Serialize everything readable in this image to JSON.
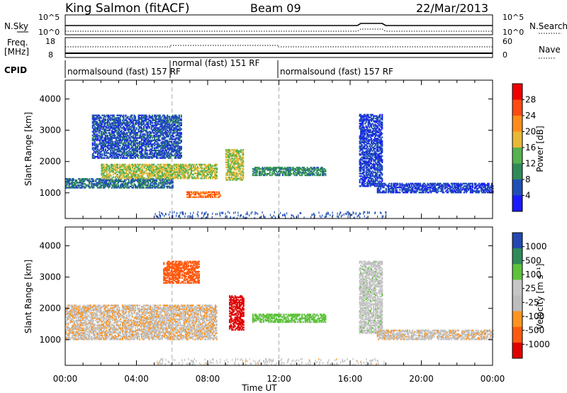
{
  "header": {
    "station": "King Salmon (fitACF)",
    "beam": "Beam 09",
    "date": "22/Mar/2013"
  },
  "summary_panels": {
    "nsky_label": "N.Sky",
    "nsearch_label": "N.Search",
    "freq_label_1": "Freq.",
    "freq_label_2": "[MHz]",
    "nave_label": "Nave",
    "cpid_label": "CPID",
    "noise_ticks_left": [
      "10^5",
      "10^0"
    ],
    "noise_ticks_right": [
      "10^5",
      "10^0"
    ],
    "freq_ticks": [
      "18",
      "8"
    ],
    "nave_ticks": [
      "60",
      "0"
    ],
    "cpid_segments": [
      {
        "label": "normalsound (fast) 157 RF",
        "start_hour": 0,
        "end_hour": 6
      },
      {
        "label": "normal (fast) 151 RF",
        "start_hour": 6,
        "end_hour": 12
      },
      {
        "label": "normalsound (fast) 157 RF",
        "start_hour": 12,
        "end_hour": 24
      }
    ]
  },
  "colors": {
    "power_scale": [
      "#1a1aff",
      "#1f4fb5",
      "#2f8a5a",
      "#55b24f",
      "#e8b838",
      "#ff8c1a",
      "#ff4a12",
      "#ee0000"
    ],
    "velocity_scale": [
      "#e00000",
      "#ff5a10",
      "#ff9420",
      "#bdbdbd",
      "#c6c6c6",
      "#5ec23c",
      "#2f8a5a",
      "#2448b0"
    ]
  },
  "chart_data": [
    {
      "type": "heatmap",
      "title": "",
      "ylabel": "Slant Range [km]",
      "xlabel": "Time UT",
      "x_range_hours": [
        0,
        24
      ],
      "ylim": [
        180,
        4600
      ],
      "yticks": [
        1000,
        2000,
        3000,
        4000
      ],
      "xticks": [
        "00:00",
        "04:00",
        "08:00",
        "12:00",
        "16:00",
        "20:00",
        "00:00"
      ],
      "colorbar": {
        "label": "Power [dB]",
        "ticks": [
          "4",
          "8",
          "12",
          "16",
          "20",
          "24",
          "28"
        ]
      },
      "regions": [
        {
          "t0": 0.0,
          "t1": 6.0,
          "r0": 1150,
          "r1": 1450,
          "value": 8
        },
        {
          "t0": 2.0,
          "t1": 8.5,
          "r0": 1450,
          "r1": 1900,
          "value": 16
        },
        {
          "t0": 1.5,
          "t1": 6.5,
          "r0": 2100,
          "r1": 3500,
          "value": 6
        },
        {
          "t0": 6.8,
          "t1": 8.7,
          "r0": 850,
          "r1": 1050,
          "value": 24
        },
        {
          "t0": 9.0,
          "t1": 10.0,
          "r0": 1400,
          "r1": 2400,
          "value": 16
        },
        {
          "t0": 10.5,
          "t1": 14.6,
          "r0": 1550,
          "r1": 1800,
          "value": 10
        },
        {
          "t0": 16.5,
          "t1": 17.8,
          "r0": 1200,
          "r1": 3500,
          "value": 5
        },
        {
          "t0": 17.5,
          "t1": 24.0,
          "r0": 1000,
          "r1": 1300,
          "value": 5
        }
      ]
    },
    {
      "type": "heatmap",
      "title": "",
      "ylabel": "Slant Range [km]",
      "xlabel": "Time UT",
      "x_range_hours": [
        0,
        24
      ],
      "ylim": [
        180,
        4600
      ],
      "yticks": [
        1000,
        2000,
        3000,
        4000
      ],
      "xticks": [
        "00:00",
        "04:00",
        "08:00",
        "12:00",
        "16:00",
        "20:00",
        "00:00"
      ],
      "colorbar": {
        "label": "Velocity [m s⁻¹]",
        "ticks": [
          "-1000",
          "-500",
          "-100",
          "-25",
          "25",
          "100",
          "500",
          "1000"
        ]
      },
      "regions": [
        {
          "t0": 0.0,
          "t1": 8.5,
          "r0": 1000,
          "r1": 2100,
          "value": 0
        },
        {
          "t0": 5.5,
          "t1": 7.5,
          "r0": 2800,
          "r1": 3500,
          "value": -300
        },
        {
          "t0": 9.2,
          "t1": 10.0,
          "r0": 1300,
          "r1": 2400,
          "value": -800
        },
        {
          "t0": 10.5,
          "t1": 14.6,
          "r0": 1550,
          "r1": 1800,
          "value": 150
        },
        {
          "t0": 16.5,
          "t1": 17.8,
          "r0": 1200,
          "r1": 3500,
          "value": 50
        },
        {
          "t0": 17.5,
          "t1": 24.0,
          "r0": 1000,
          "r1": 1300,
          "value": 10
        }
      ]
    }
  ]
}
